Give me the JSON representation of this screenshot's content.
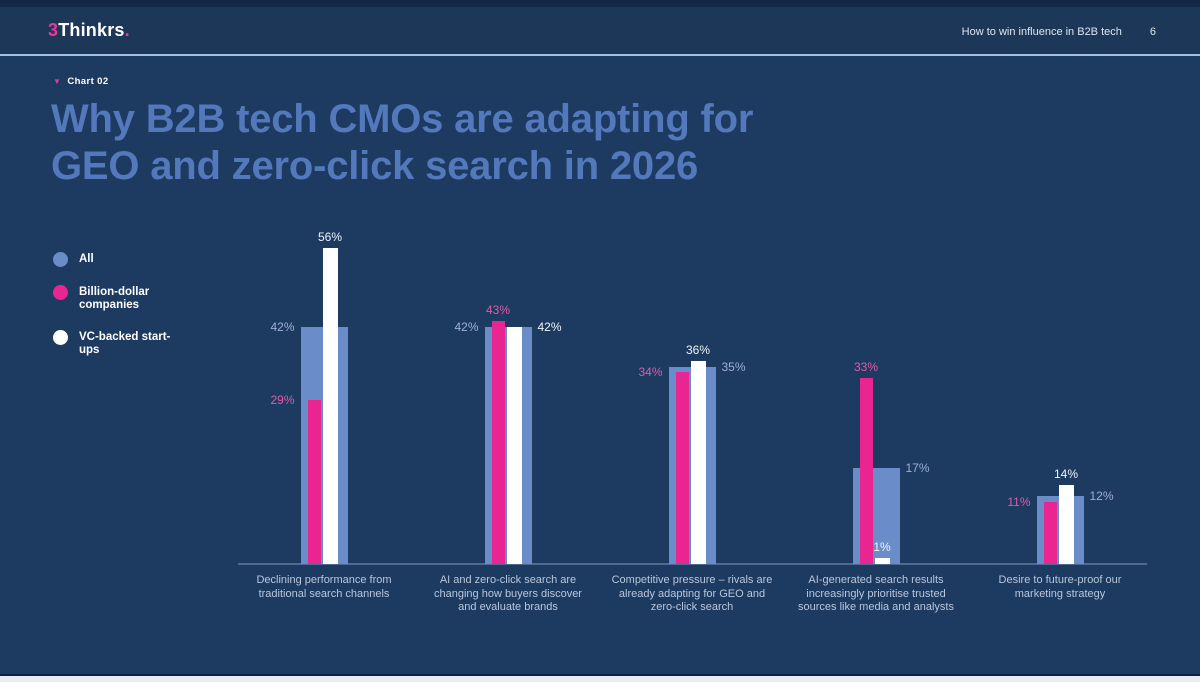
{
  "header": {
    "logo_prefix": "3",
    "logo_name": "Thinkrs",
    "logo_suffix": ".",
    "right_text": "How to win influence in B2B tech",
    "page_number": "6"
  },
  "chart_tag": {
    "marker": "▼",
    "label": "Chart 02"
  },
  "title": {
    "line1": "Why B2B tech CMOs are adapting for",
    "line2": "GEO and zero-click search in 2026"
  },
  "chart_data": {
    "type": "bar",
    "title": "Why B2B tech CMOs are adapting for GEO and zero-click search in 2026",
    "categories": [
      "Declining performance from traditional search channels",
      "AI and zero-click search are changing how buyers discover and evaluate brands",
      "Competitive pressure – rivals are already adapting for GEO and zero-click search",
      "AI-generated search results increasingly prioritise trusted sources like media and analysts",
      "Desire to future-proof our marketing strategy"
    ],
    "series": [
      {
        "name": "All",
        "color": "#6a8dca",
        "label_color": "#9db1d3",
        "values": [
          42,
          42,
          35,
          17,
          12
        ],
        "label_positions": [
          "left",
          "left",
          "right",
          "right",
          "right"
        ]
      },
      {
        "name": "Billion-dollar companies",
        "color": "#e92591",
        "label_color": "#e05ba6",
        "values": [
          29,
          43,
          34,
          33,
          11
        ],
        "label_positions": [
          "left",
          "top",
          "left",
          "top",
          "left"
        ]
      },
      {
        "name": "VC-backed start-ups",
        "color": "#ffffff",
        "label_color": "#f0f4f9",
        "values": [
          56,
          42,
          36,
          1,
          14
        ],
        "label_positions": [
          "top",
          "right",
          "top",
          "top",
          "top"
        ]
      }
    ],
    "value_suffix": "%",
    "ylim": [
      0,
      60
    ],
    "grid": false,
    "legend_position": "left"
  }
}
